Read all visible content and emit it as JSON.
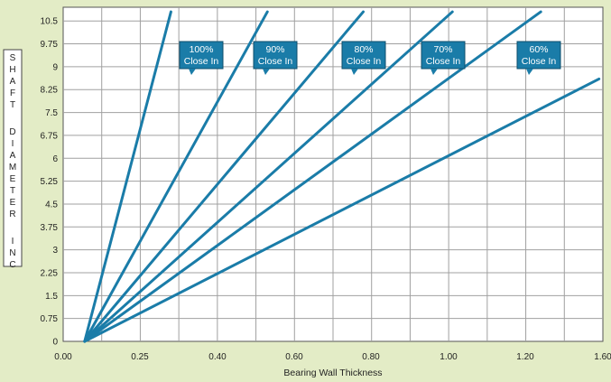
{
  "chart_data": {
    "type": "line",
    "xlabel": "Bearing Wall Thickness",
    "ylabel": "SHAFT DIAMETER INCH",
    "x_ticks": [
      "0.00",
      "0.25",
      "0.40",
      "0.60",
      "0.80",
      "1.00",
      "1.20",
      "1.60"
    ],
    "y_ticks": [
      "0",
      "0.75",
      "1.5",
      "2.25",
      "3",
      "3.75",
      "4.5",
      "5.25",
      "6",
      "6.75",
      "7.5",
      "8.25",
      "9",
      "9.75",
      "10.5"
    ],
    "grid": true,
    "series": [
      {
        "name": "100% Close In",
        "points": [
          [
            0.07,
            0.0
          ],
          [
            0.31,
            10.8
          ]
        ]
      },
      {
        "name": "90% Close In",
        "points": [
          [
            0.07,
            0.0
          ],
          [
            0.53,
            10.8
          ]
        ]
      },
      {
        "name": "80% Close In",
        "points": [
          [
            0.07,
            0.0
          ],
          [
            0.78,
            10.8
          ]
        ]
      },
      {
        "name": "70% Close In",
        "points": [
          [
            0.07,
            0.0
          ],
          [
            1.01,
            10.8
          ]
        ]
      },
      {
        "name": "60% Close In",
        "points": [
          [
            0.07,
            0.0
          ],
          [
            1.28,
            10.8
          ]
        ]
      },
      {
        "name": "",
        "points": [
          [
            0.07,
            0.0
          ],
          [
            1.58,
            8.6
          ]
        ]
      }
    ],
    "callouts": [
      {
        "line1": "100%",
        "line2": "Close In"
      },
      {
        "line1": "90%",
        "line2": "Close In"
      },
      {
        "line1": "80%",
        "line2": "Close In"
      },
      {
        "line1": "70%",
        "line2": "Close In"
      },
      {
        "line1": "60%",
        "line2": "Close In"
      }
    ],
    "colors": {
      "background": "#e3ecc6",
      "plot_bg": "#ffffff",
      "grid": "#a0a0a0",
      "line": "#1a7ca8",
      "callout_bg": "#1a7ca8"
    }
  }
}
